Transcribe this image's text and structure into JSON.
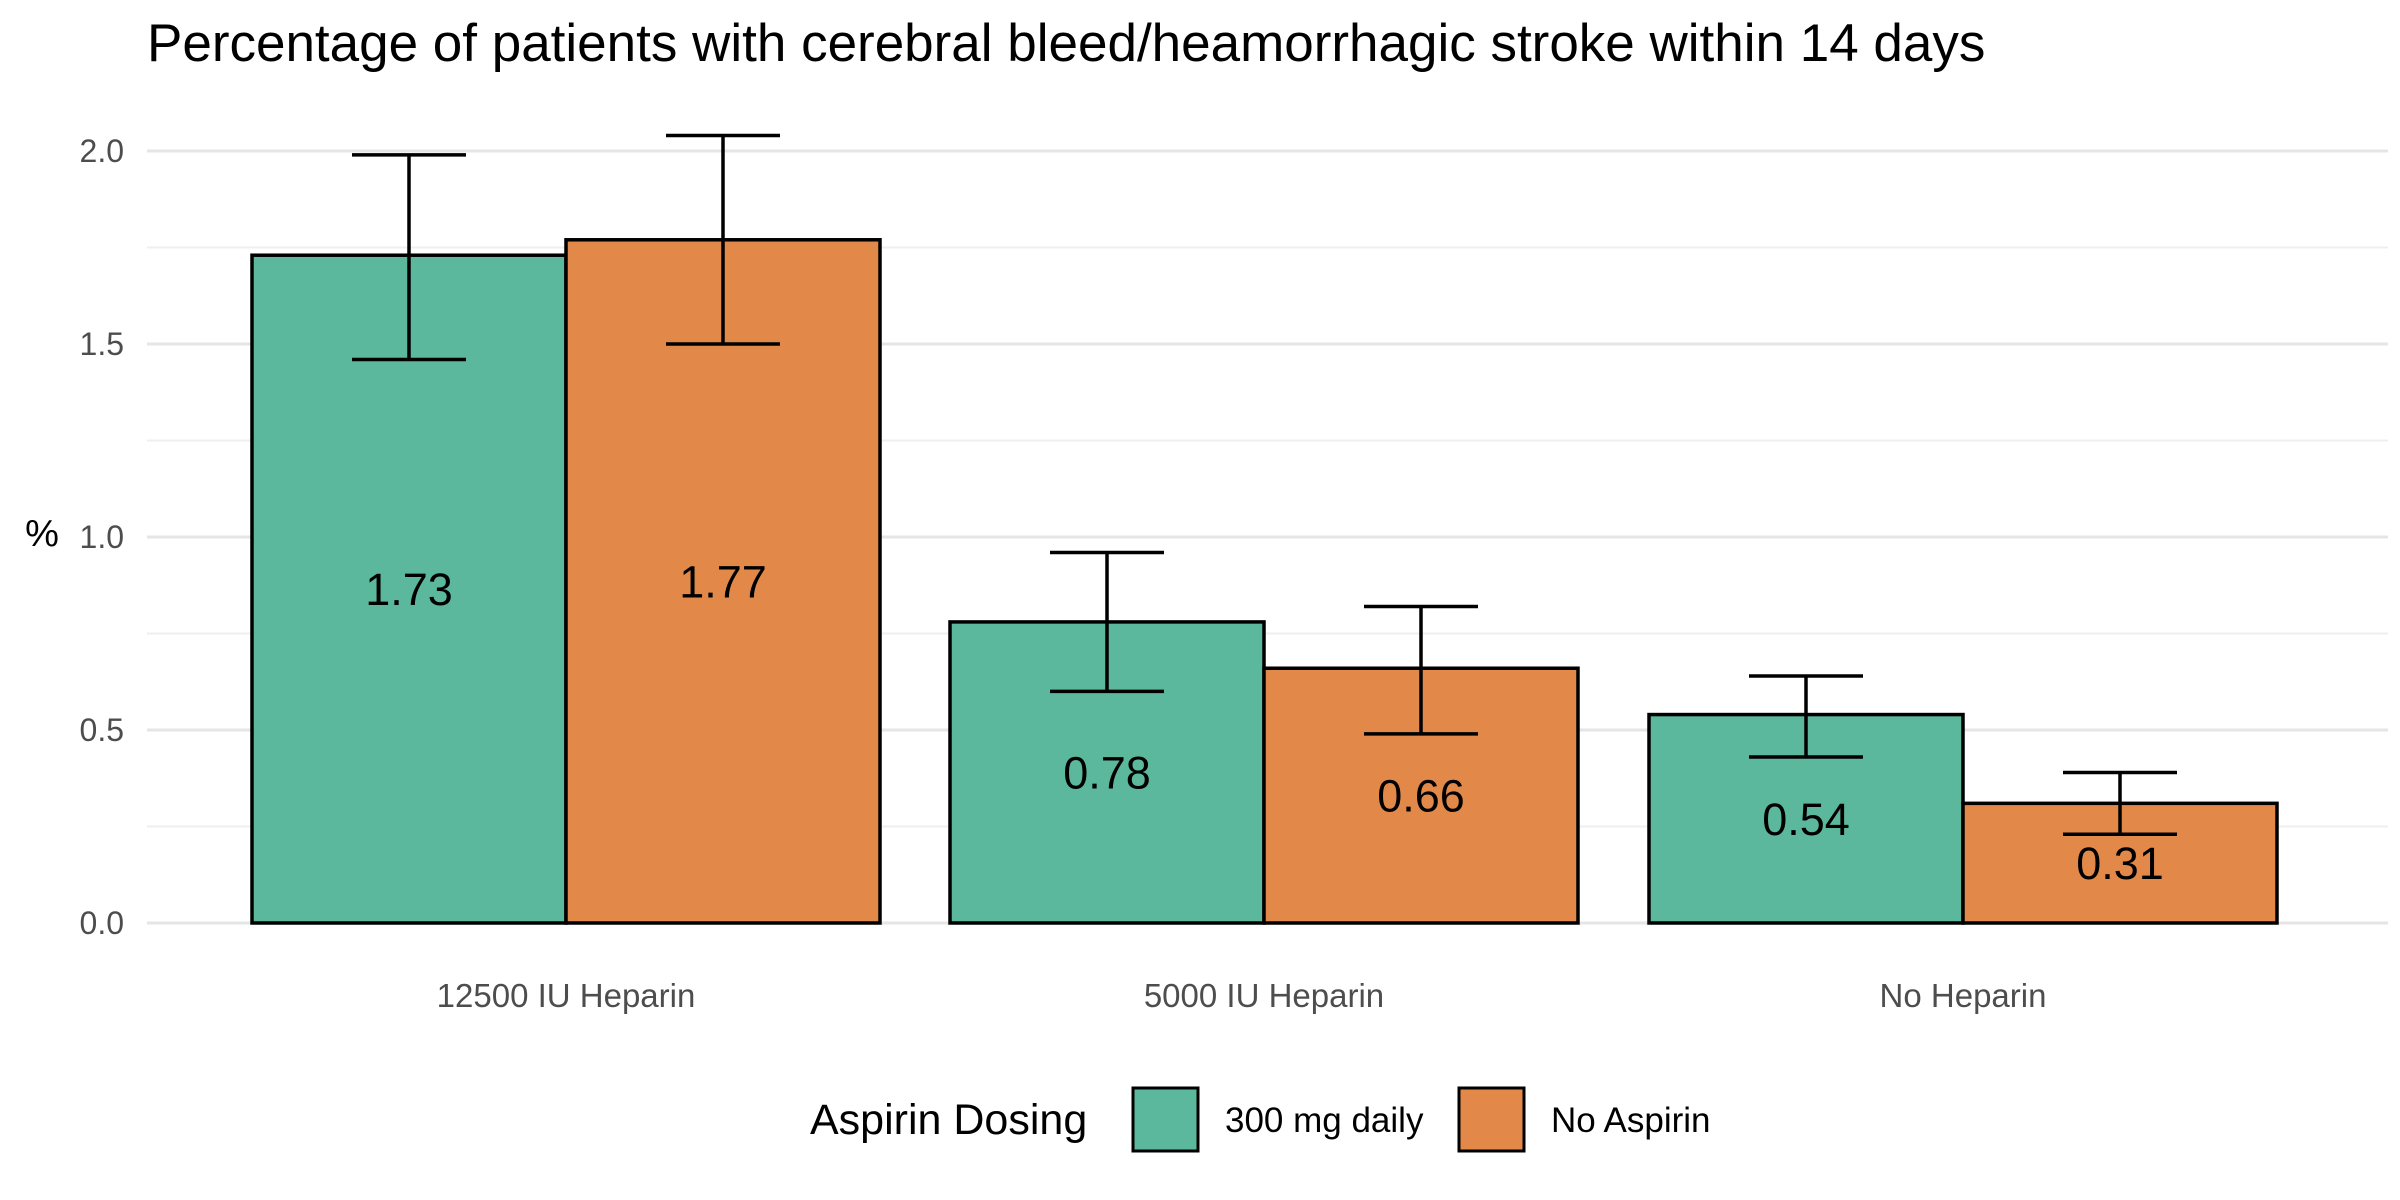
{
  "chart_data": {
    "type": "bar",
    "title": "Percentage of patients with cerebral bleed/heamorrhagic stroke within 14 days",
    "xlabel": "",
    "ylabel": "%",
    "categories": [
      "12500 IU Heparin",
      "5000 IU Heparin",
      "No Heparin"
    ],
    "ylim": [
      0,
      2.05
    ],
    "yticks": [
      "0.0",
      "0.5",
      "1.0",
      "1.5",
      "2.0"
    ],
    "grid": true,
    "legend": {
      "title": "Aspirin Dosing",
      "placement": "bottom"
    },
    "series": [
      {
        "name": "300 mg daily",
        "color": "#5BB89C",
        "values": [
          1.73,
          0.78,
          0.54
        ],
        "labels": [
          "1.73",
          "0.78",
          "0.54"
        ],
        "error_low": [
          1.46,
          0.6,
          0.43
        ],
        "error_high": [
          1.99,
          0.96,
          0.64
        ]
      },
      {
        "name": "No Aspirin",
        "color": "#E2894A",
        "values": [
          1.77,
          0.66,
          0.31
        ],
        "labels": [
          "1.77",
          "0.66",
          "0.31"
        ],
        "error_low": [
          1.5,
          0.49,
          0.23
        ],
        "error_high": [
          2.04,
          0.82,
          0.39
        ]
      }
    ]
  }
}
